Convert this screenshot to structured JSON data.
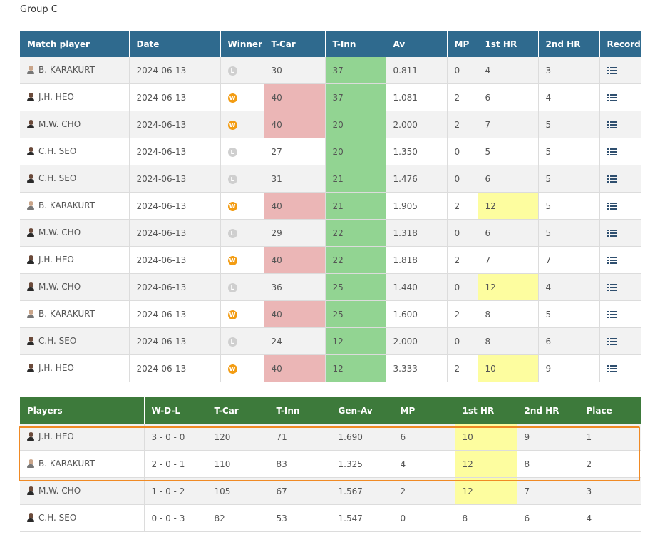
{
  "group_title": "Group C",
  "match_table": {
    "headers": [
      "Match player",
      "Date",
      "Winner",
      "T-Car",
      "T-Inn",
      "Av",
      "MP",
      "1st HR",
      "2nd HR",
      "Record"
    ],
    "rows": [
      {
        "player": "B. KARAKURT",
        "date": "2024-06-13",
        "winner": "L",
        "tcar": "30",
        "tinn": "37",
        "av": "0.811",
        "mp": "0",
        "hr1": "4",
        "hr2": "3"
      },
      {
        "player": "J.H. HEO",
        "date": "2024-06-13",
        "winner": "W",
        "tcar": "40",
        "tinn": "37",
        "av": "1.081",
        "mp": "2",
        "hr1": "6",
        "hr2": "4"
      },
      {
        "player": "M.W. CHO",
        "date": "2024-06-13",
        "winner": "W",
        "tcar": "40",
        "tinn": "20",
        "av": "2.000",
        "mp": "2",
        "hr1": "7",
        "hr2": "5"
      },
      {
        "player": "C.H. SEO",
        "date": "2024-06-13",
        "winner": "L",
        "tcar": "27",
        "tinn": "20",
        "av": "1.350",
        "mp": "0",
        "hr1": "5",
        "hr2": "5"
      },
      {
        "player": "C.H. SEO",
        "date": "2024-06-13",
        "winner": "L",
        "tcar": "31",
        "tinn": "21",
        "av": "1.476",
        "mp": "0",
        "hr1": "6",
        "hr2": "5"
      },
      {
        "player": "B. KARAKURT",
        "date": "2024-06-13",
        "winner": "W",
        "tcar": "40",
        "tinn": "21",
        "av": "1.905",
        "mp": "2",
        "hr1": "12",
        "hr2": "5"
      },
      {
        "player": "M.W. CHO",
        "date": "2024-06-13",
        "winner": "L",
        "tcar": "29",
        "tinn": "22",
        "av": "1.318",
        "mp": "0",
        "hr1": "6",
        "hr2": "5"
      },
      {
        "player": "J.H. HEO",
        "date": "2024-06-13",
        "winner": "W",
        "tcar": "40",
        "tinn": "22",
        "av": "1.818",
        "mp": "2",
        "hr1": "7",
        "hr2": "7"
      },
      {
        "player": "M.W. CHO",
        "date": "2024-06-13",
        "winner": "L",
        "tcar": "36",
        "tinn": "25",
        "av": "1.440",
        "mp": "0",
        "hr1": "12",
        "hr2": "4"
      },
      {
        "player": "B. KARAKURT",
        "date": "2024-06-13",
        "winner": "W",
        "tcar": "40",
        "tinn": "25",
        "av": "1.600",
        "mp": "2",
        "hr1": "8",
        "hr2": "5"
      },
      {
        "player": "C.H. SEO",
        "date": "2024-06-13",
        "winner": "L",
        "tcar": "24",
        "tinn": "12",
        "av": "2.000",
        "mp": "0",
        "hr1": "8",
        "hr2": "6"
      },
      {
        "player": "J.H. HEO",
        "date": "2024-06-13",
        "winner": "W",
        "tcar": "40",
        "tinn": "12",
        "av": "3.333",
        "mp": "2",
        "hr1": "10",
        "hr2": "9"
      }
    ]
  },
  "standings_table": {
    "headers": [
      "Players",
      "W-D-L",
      "T-Car",
      "T-Inn",
      "Gen-Av",
      "MP",
      "1st HR",
      "2nd HR",
      "Place"
    ],
    "rows": [
      {
        "player": "J.H. HEO",
        "wdl": "3 - 0 - 0",
        "tcar": "120",
        "tinn": "71",
        "genav": "1.690",
        "mp": "6",
        "hr1": "10",
        "hr2": "9",
        "place": "1"
      },
      {
        "player": "B. KARAKURT",
        "wdl": "2 - 0 - 1",
        "tcar": "110",
        "tinn": "83",
        "genav": "1.325",
        "mp": "4",
        "hr1": "12",
        "hr2": "8",
        "place": "2"
      },
      {
        "player": "M.W. CHO",
        "wdl": "1 - 0 - 2",
        "tcar": "105",
        "tinn": "67",
        "genav": "1.567",
        "mp": "2",
        "hr1": "12",
        "hr2": "7",
        "place": "3"
      },
      {
        "player": "C.H. SEO",
        "wdl": "0 - 0 - 3",
        "tcar": "82",
        "tinn": "53",
        "genav": "1.547",
        "mp": "0",
        "hr1": "8",
        "hr2": "6",
        "place": "4"
      }
    ]
  },
  "icons": {
    "record": "list-icon",
    "winner_badge": "win-badge-icon",
    "loser_badge": "loss-badge-icon",
    "avatar": "player-avatar-icon"
  },
  "colors": {
    "match_header": "#2f6a8e",
    "standings_header": "#3d7a3b",
    "tcar_hit": "#ebb6b6",
    "tinn": "#92d492",
    "high_run": "#fdfd9f",
    "highlight_border": "#f08a24"
  }
}
